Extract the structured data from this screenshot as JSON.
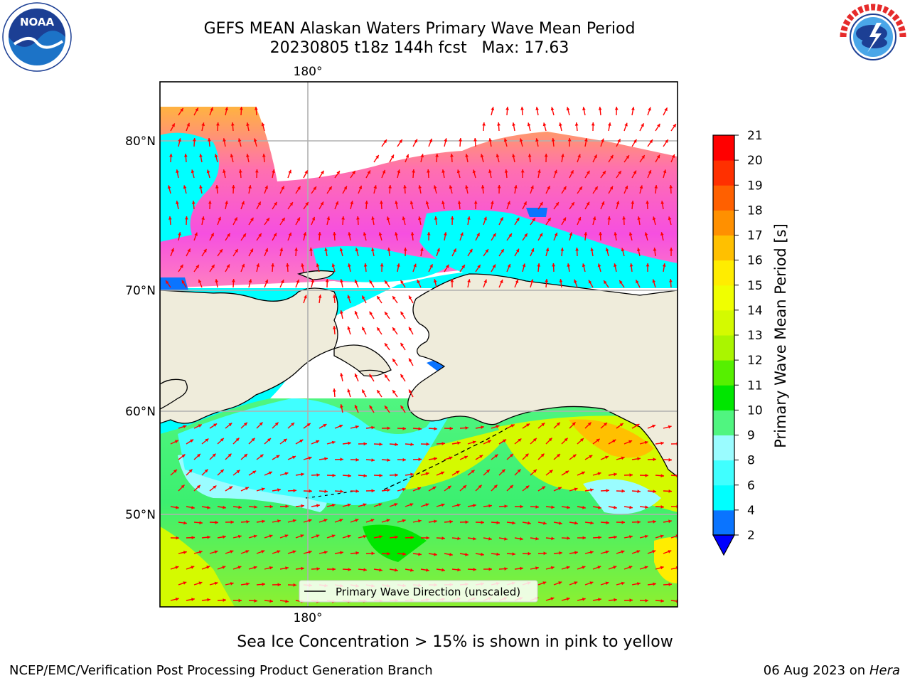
{
  "title_line1": "GEFS MEAN Alaskan Waters Primary Wave Mean Period",
  "title_line2": "20230805 t18z 144h fcst   Max: 17.63",
  "logos": {
    "left": "noara-logo",
    "left_text": "NOAA",
    "right": "nws-logo"
  },
  "map": {
    "lon_label_top": "180°",
    "lon_label_bottom": "180°",
    "lat_labels": [
      "80°N",
      "70°N",
      "60°N",
      "50°N"
    ],
    "legend_text": "Primary Wave Direction (unscaled)",
    "colors": {
      "land": "#efecdb",
      "arrow": "#ff0000",
      "grid": "#b0b0b0"
    }
  },
  "colorbar": {
    "label": "Primary Wave Mean Period [s]",
    "ticks": [
      "2",
      "4",
      "6",
      "8",
      "9",
      "10",
      "11",
      "12",
      "13",
      "14",
      "15",
      "16",
      "17",
      "18",
      "19",
      "20",
      "21"
    ],
    "colors": [
      "#0a74ff",
      "#00ffff",
      "#40ffff",
      "#9afcff",
      "#50f580",
      "#00e600",
      "#56f000",
      "#aaf500",
      "#d4fa00",
      "#f0ff00",
      "#ffed00",
      "#ffc000",
      "#ff9000",
      "#ff6000",
      "#ff3000",
      "#ff0000"
    ],
    "under_color": "#0000ff"
  },
  "note": "Sea Ice Concentration > 15% is shown in pink to yellow",
  "footer_left": "NCEP/EMC/Verification Post Processing Product Generation Branch",
  "footer_right_date": "06 Aug 2023 on",
  "footer_right_host": "Hera"
}
